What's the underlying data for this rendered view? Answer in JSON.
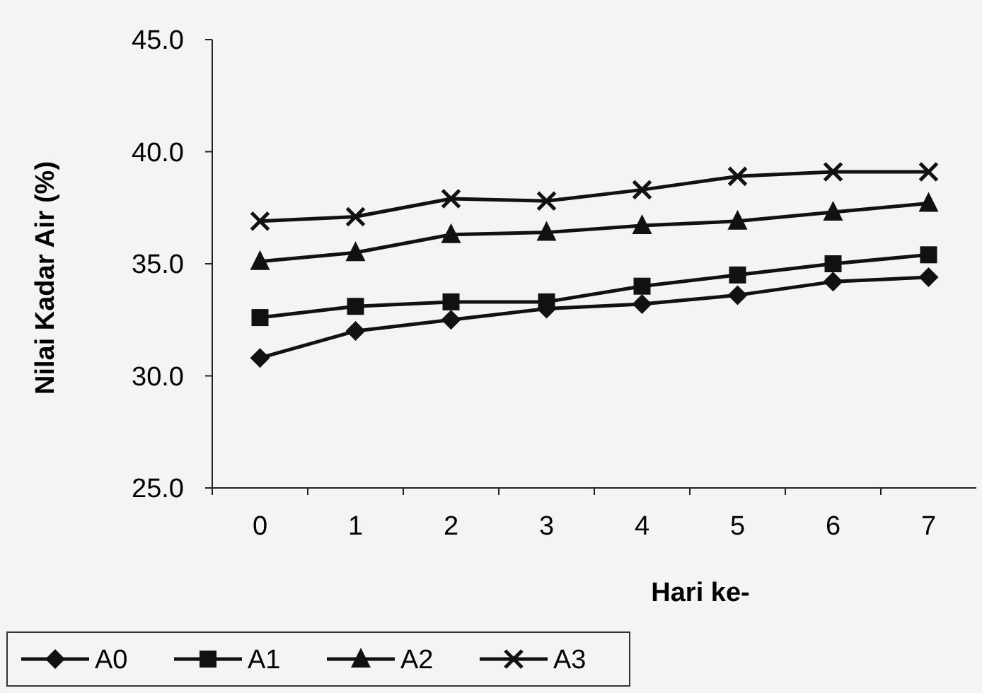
{
  "chart_data": {
    "type": "line",
    "xlabel": "Hari ke-",
    "ylabel": "Nilai Kadar Air (%)",
    "categories": [
      "0",
      "1",
      "2",
      "3",
      "4",
      "5",
      "6",
      "7"
    ],
    "ylim": [
      25,
      45
    ],
    "yticks": [
      {
        "value": 25,
        "label": "25.0"
      },
      {
        "value": 30,
        "label": "30.0"
      },
      {
        "value": 35,
        "label": "35.0"
      },
      {
        "value": 40,
        "label": "40.0"
      },
      {
        "value": 45,
        "label": "45.0"
      }
    ],
    "legend": "bottom left",
    "grid": false,
    "series": [
      {
        "name": "A0",
        "color": "#111111",
        "marker": "diamond",
        "values": [
          30.8,
          32.0,
          32.5,
          33.0,
          33.2,
          33.6,
          34.2,
          34.4
        ]
      },
      {
        "name": "A1",
        "color": "#111111",
        "marker": "square",
        "values": [
          32.6,
          33.1,
          33.3,
          33.3,
          34.0,
          34.5,
          35.0,
          35.4
        ]
      },
      {
        "name": "A2",
        "color": "#111111",
        "marker": "triangle",
        "values": [
          35.1,
          35.5,
          36.3,
          36.4,
          36.7,
          36.9,
          37.3,
          37.7
        ]
      },
      {
        "name": "A3",
        "color": "#111111",
        "marker": "cross",
        "values": [
          36.9,
          37.1,
          37.9,
          37.8,
          38.3,
          38.9,
          39.1,
          39.1
        ]
      }
    ]
  }
}
